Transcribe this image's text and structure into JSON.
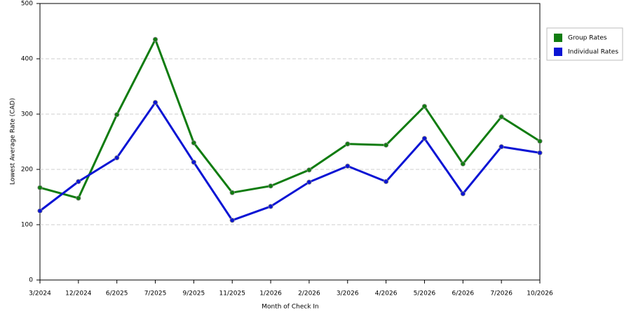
{
  "chart_data": {
    "type": "line",
    "x_label": "Month of Check In",
    "y_label": "Lowest Average Rate (CAD)",
    "categories": [
      "3/2024",
      "12/2024",
      "6/2025",
      "7/2025",
      "9/2025",
      "11/2025",
      "1/2026",
      "2/2026",
      "3/2026",
      "4/2026",
      "5/2026",
      "6/2026",
      "7/2026",
      "10/2026"
    ],
    "series": [
      {
        "name": "Group Rates",
        "color": "#107c10",
        "values": [
          167,
          148,
          299,
          435,
          248,
          158,
          170,
          199,
          246,
          244,
          314,
          210,
          295,
          251
        ]
      },
      {
        "name": "Individual Rates",
        "color": "#0a14d4",
        "values": [
          125,
          178,
          221,
          321,
          213,
          108,
          133,
          177,
          206,
          178,
          256,
          156,
          241,
          230
        ]
      }
    ],
    "ylim": [
      0,
      500
    ],
    "yticks": [
      0,
      100,
      200,
      300,
      400,
      500
    ],
    "grid": true,
    "legend": "right"
  }
}
